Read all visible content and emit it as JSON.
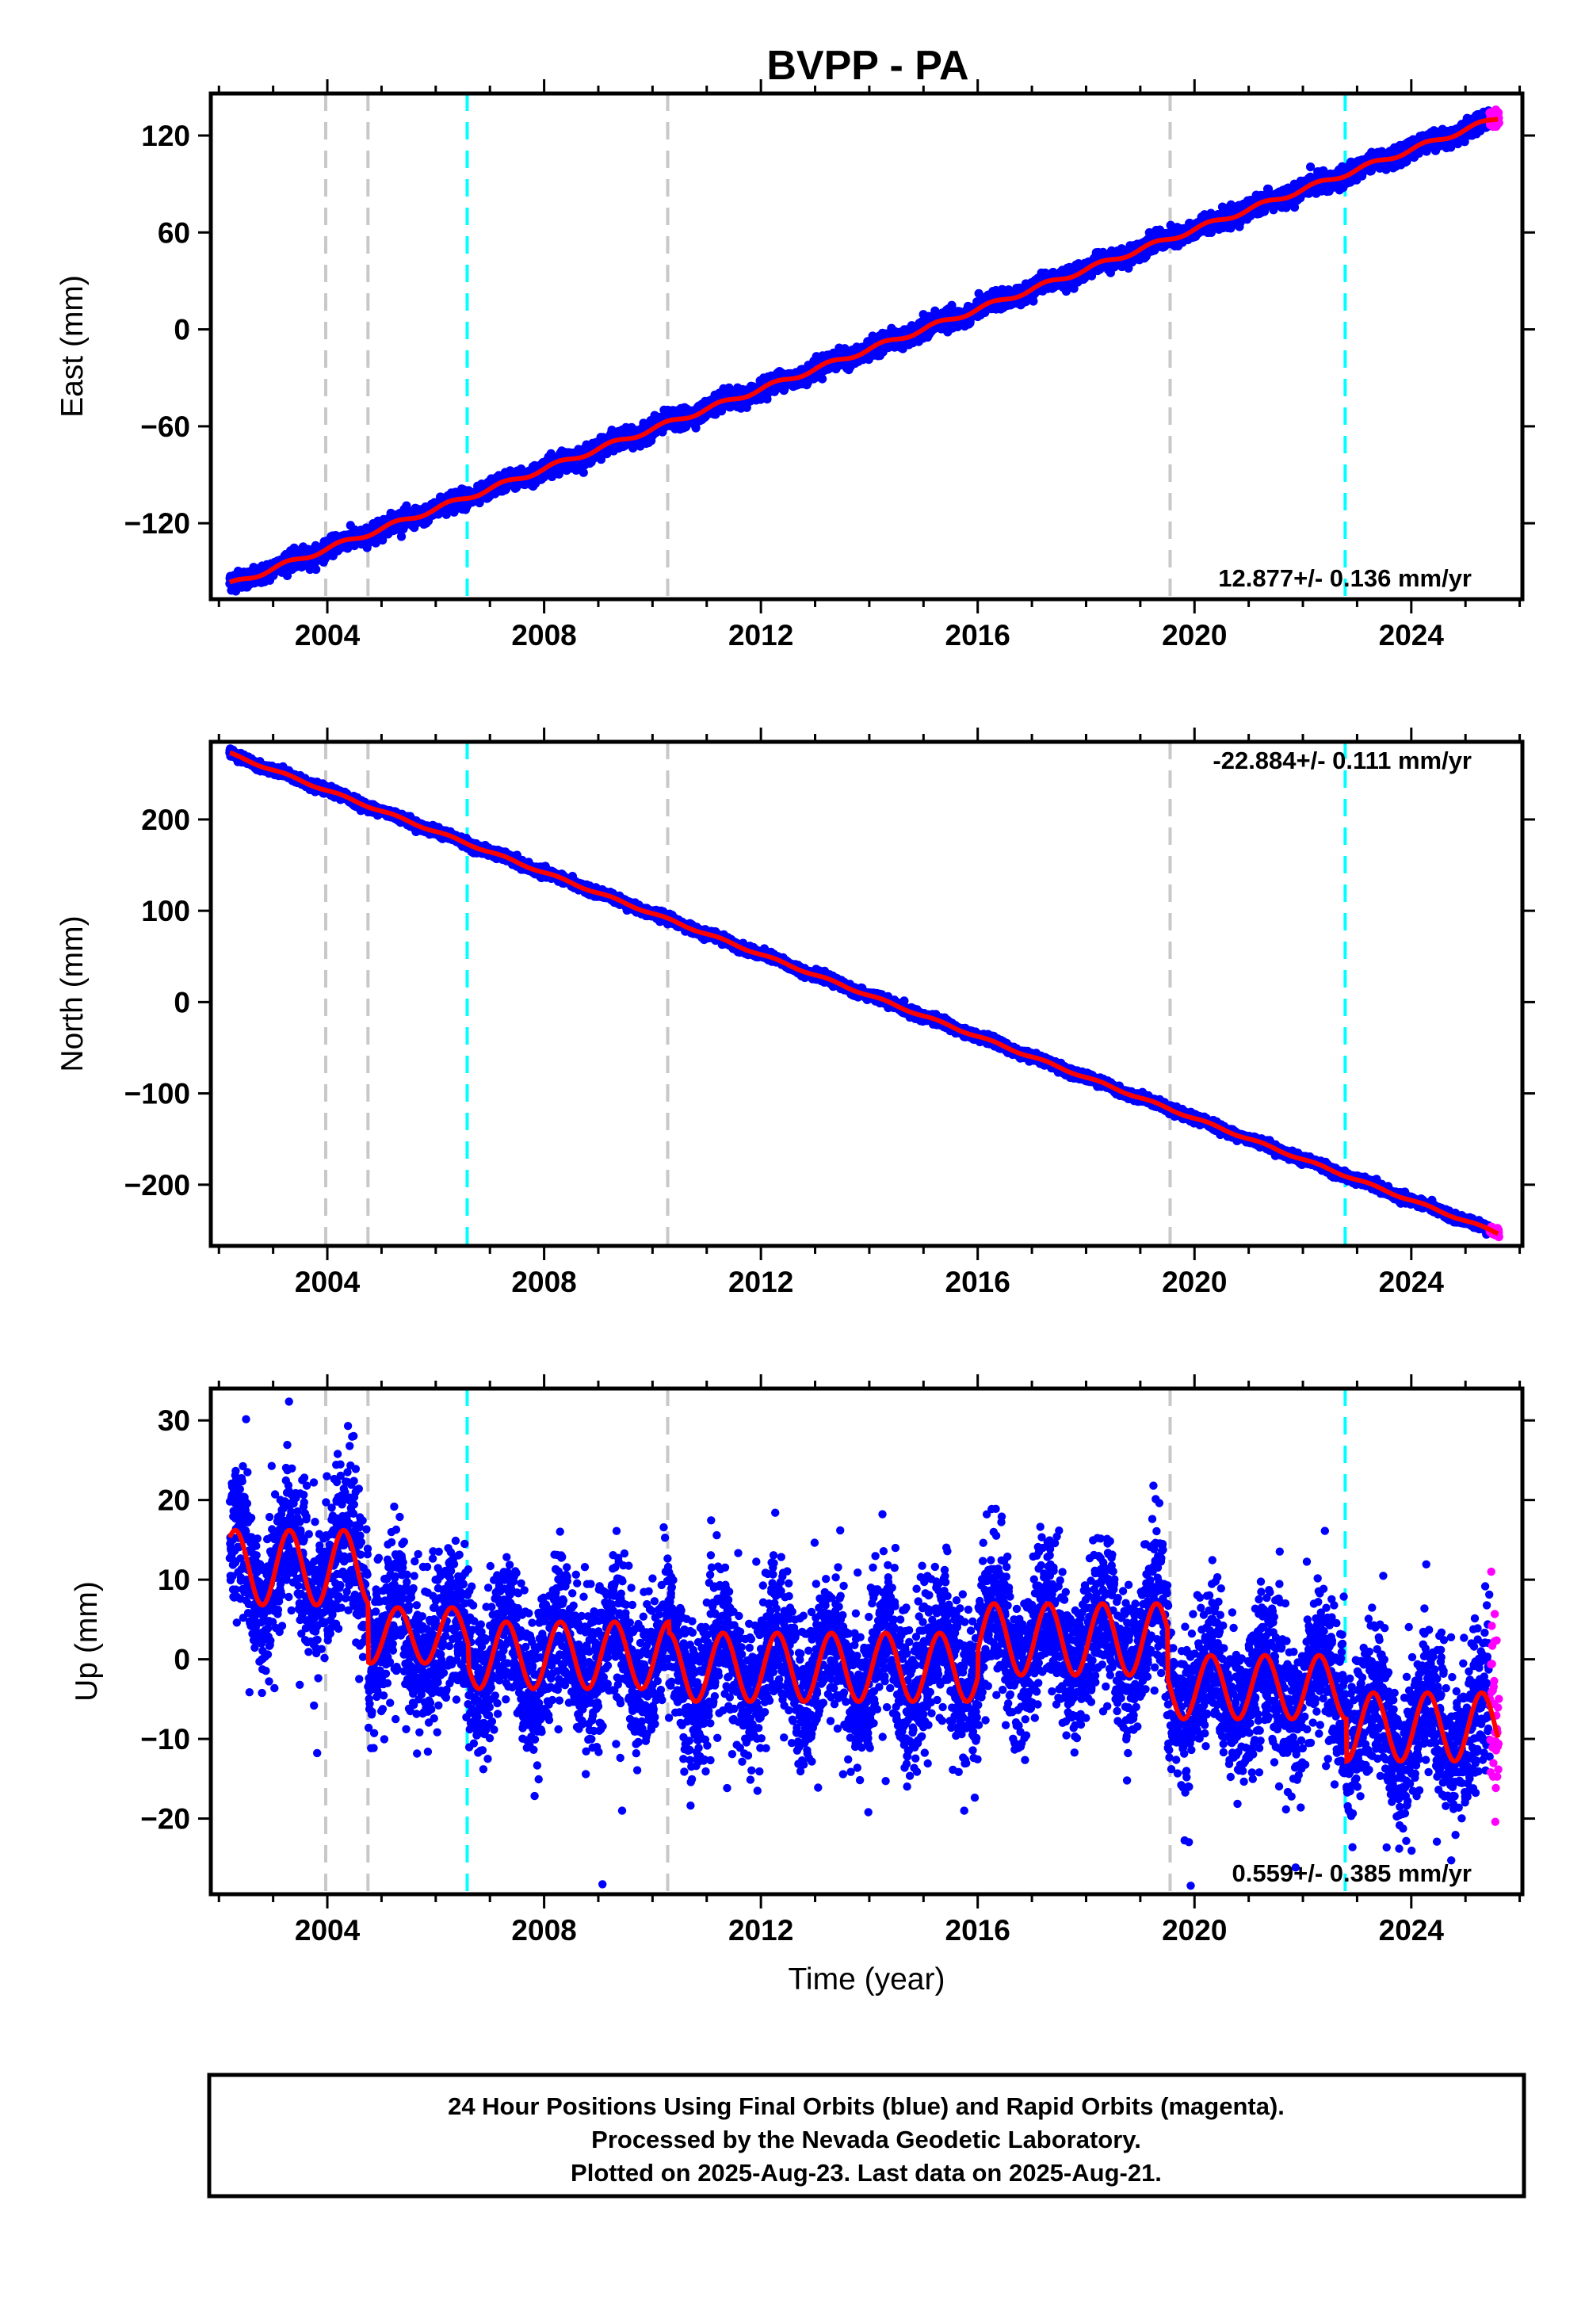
{
  "chart_data": [
    {
      "type": "scatter",
      "title": "BVPP - PA",
      "ylabel": "East (mm)",
      "xlabel": "",
      "xlim": [
        2001.85,
        2026.05
      ],
      "ylim": [
        -167,
        146
      ],
      "x_ticks": [
        2004,
        2008,
        2012,
        2016,
        2020,
        2024
      ],
      "y_ticks": [
        -120,
        -60,
        0,
        60,
        120
      ],
      "rate_label": "12.877+/- 0.136 mm/yr",
      "rate_position": "bottom-right",
      "fit": {
        "start": 2002.2,
        "end": 2025.6,
        "y_start": -158,
        "y_end": 131,
        "seasonal_amp": 1.5,
        "offsets": [
          {
            "year": 2004.75,
            "delta": 2
          },
          {
            "year": 2006.6,
            "delta": 2
          }
        ]
      },
      "series": [
        {
          "values_from": "final",
          "color": "#0000ff",
          "start": 2002.2,
          "end": 2025.45,
          "scatter": 2.6
        },
        {
          "values_from": "rapid",
          "color": "#ff00ff",
          "start": 2025.45,
          "end": 2025.62,
          "scatter": 2.5
        }
      ]
    },
    {
      "type": "scatter",
      "title": "",
      "ylabel": "North (mm)",
      "xlabel": "",
      "xlim": [
        2001.85,
        2026.05
      ],
      "ylim": [
        -267,
        285
      ],
      "x_ticks": [
        2004,
        2008,
        2012,
        2016,
        2020,
        2024
      ],
      "y_ticks": [
        -200,
        -100,
        0,
        100,
        200
      ],
      "rate_label": "-22.884+/- 0.111 mm/yr",
      "rate_position": "top-right",
      "fit": {
        "start": 2002.2,
        "end": 2025.6,
        "y_start": 272,
        "y_end": -253,
        "seasonal_amp": 1.2,
        "offsets": []
      },
      "series": [
        {
          "values_from": "final",
          "color": "#0000ff",
          "start": 2002.2,
          "end": 2025.45,
          "scatter": 2.2
        },
        {
          "values_from": "rapid",
          "color": "#ff00ff",
          "start": 2025.45,
          "end": 2025.62,
          "scatter": 2.2
        }
      ]
    },
    {
      "type": "scatter",
      "title": "",
      "ylabel": "Up (mm)",
      "xlabel": "Time (year)",
      "xlim": [
        2001.85,
        2026.05
      ],
      "ylim": [
        -29.5,
        34
      ],
      "x_ticks": [
        2004,
        2008,
        2012,
        2016,
        2020,
        2024
      ],
      "y_ticks": [
        -20,
        -10,
        0,
        10,
        20,
        30
      ],
      "rate_label": "0.559+/- 0.385 mm/yr",
      "rate_position": "bottom-right",
      "fit_segments": [
        {
          "start": 2002.2,
          "end": 2004.75,
          "base": 11.5,
          "amp": 4.7
        },
        {
          "start": 2004.75,
          "end": 2006.6,
          "base": 3.0,
          "amp": 3.5
        },
        {
          "start": 2006.6,
          "end": 2010.3,
          "base": 0.5,
          "amp": 4.2
        },
        {
          "start": 2010.3,
          "end": 2016.0,
          "base": -1.0,
          "amp": 4.3
        },
        {
          "start": 2016.0,
          "end": 2019.5,
          "base": 2.5,
          "amp": 4.5
        },
        {
          "start": 2019.5,
          "end": 2022.8,
          "base": -3.5,
          "amp": 4.0
        },
        {
          "start": 2022.8,
          "end": 2025.6,
          "base": -8.5,
          "amp": 4.3
        }
      ],
      "series": [
        {
          "values_from": "final",
          "color": "#0000ff",
          "start": 2002.2,
          "end": 2025.45,
          "scatter": 4.6
        },
        {
          "values_from": "rapid",
          "color": "#ff00ff",
          "start": 2025.45,
          "end": 2025.62,
          "scatter": 5.5
        }
      ]
    }
  ],
  "vertical_lines": [
    {
      "year": 2003.97,
      "color": "#c8c8c8"
    },
    {
      "year": 2004.75,
      "color": "#c8c8c8"
    },
    {
      "year": 2006.58,
      "color": "#00ffff"
    },
    {
      "year": 2010.28,
      "color": "#c8c8c8"
    },
    {
      "year": 2019.55,
      "color": "#c8c8c8"
    },
    {
      "year": 2022.78,
      "color": "#00ffff"
    }
  ],
  "fit_color": "#ff0000",
  "caption": {
    "line1": "24 Hour Positions Using Final Orbits (blue) and Rapid Orbits (magenta).",
    "line2": "Processed by the Nevada Geodetic Laboratory.",
    "line3": "Plotted on 2025-Aug-23. Last data on 2025-Aug-21."
  }
}
